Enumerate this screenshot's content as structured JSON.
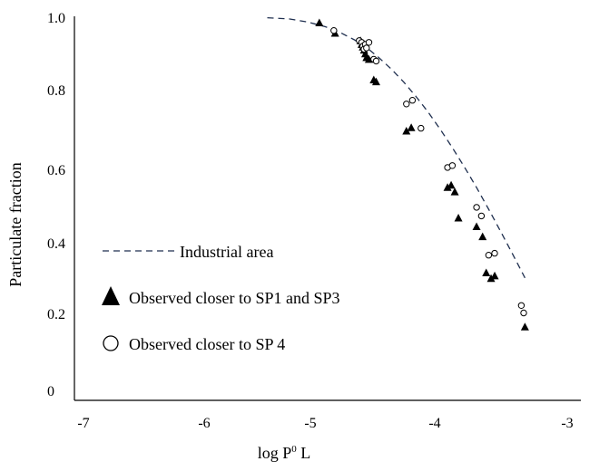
{
  "chart_data": {
    "type": "scatter",
    "title": "",
    "xlabel": {
      "base": "log P",
      "sup": "0",
      "rest": " L"
    },
    "ylabel": "Particulate fraction",
    "xlim": [
      -7,
      -3
    ],
    "ylim": [
      0,
      1.0
    ],
    "x_ticks": [
      "-7",
      "-6",
      "-5",
      "-4",
      "-3"
    ],
    "y_ticks": [
      "0",
      "0.2",
      "0.4",
      "0.6",
      "0.8",
      "1.0"
    ],
    "grid": false,
    "legend_position": "left",
    "legend": {
      "line": "Industrial area",
      "triangle": "Observed closer to SP1 and SP3",
      "circle": "Observed closer to SP 4"
    },
    "series": [
      {
        "name": "Industrial area",
        "kind": "dashed-line",
        "color": "#1f2f4f",
        "x": [
          -5.48,
          -5.3,
          -5.15,
          -5.0,
          -4.88,
          -4.76,
          -4.65,
          -4.55,
          -4.45,
          -4.35,
          -4.25,
          -4.15,
          -4.05,
          -3.95,
          -3.85,
          -3.75,
          -3.65,
          -3.55,
          -3.45,
          -3.35
        ],
        "y": [
          0.996,
          0.993,
          0.985,
          0.972,
          0.957,
          0.937,
          0.914,
          0.887,
          0.857,
          0.823,
          0.785,
          0.743,
          0.697,
          0.648,
          0.596,
          0.541,
          0.483,
          0.423,
          0.362,
          0.299
        ]
      },
      {
        "name": "Observed closer to SP1 and SP3",
        "kind": "triangle",
        "color": "#000000",
        "x": [
          -5.05,
          -4.92,
          -4.71,
          -4.7,
          -4.69,
          -4.68,
          -4.67,
          -4.66,
          -4.64,
          -4.6,
          -4.58,
          -4.33,
          -4.29,
          -3.99,
          -3.96,
          -3.93,
          -3.9,
          -3.75,
          -3.7,
          -3.67,
          -3.63,
          -3.6,
          -3.35
        ],
        "y": [
          0.983,
          0.955,
          0.935,
          0.925,
          0.918,
          0.91,
          0.9,
          0.89,
          0.885,
          0.83,
          0.825,
          0.693,
          0.702,
          0.542,
          0.548,
          0.53,
          0.46,
          0.437,
          0.41,
          0.313,
          0.298,
          0.305,
          0.168
        ]
      },
      {
        "name": "Observed closer to SP 4",
        "kind": "circle",
        "color": "#000000",
        "x": [
          -4.93,
          -4.72,
          -4.7,
          -4.69,
          -4.68,
          -4.67,
          -4.66,
          -4.64,
          -4.6,
          -4.58,
          -4.33,
          -4.28,
          -4.21,
          -3.99,
          -3.95,
          -3.75,
          -3.71,
          -3.65,
          -3.6,
          -3.38,
          -3.36
        ],
        "y": [
          0.962,
          0.935,
          0.93,
          0.92,
          0.912,
          0.925,
          0.915,
          0.93,
          0.885,
          0.88,
          0.765,
          0.775,
          0.7,
          0.595,
          0.6,
          0.488,
          0.465,
          0.36,
          0.365,
          0.225,
          0.205
        ]
      }
    ]
  }
}
